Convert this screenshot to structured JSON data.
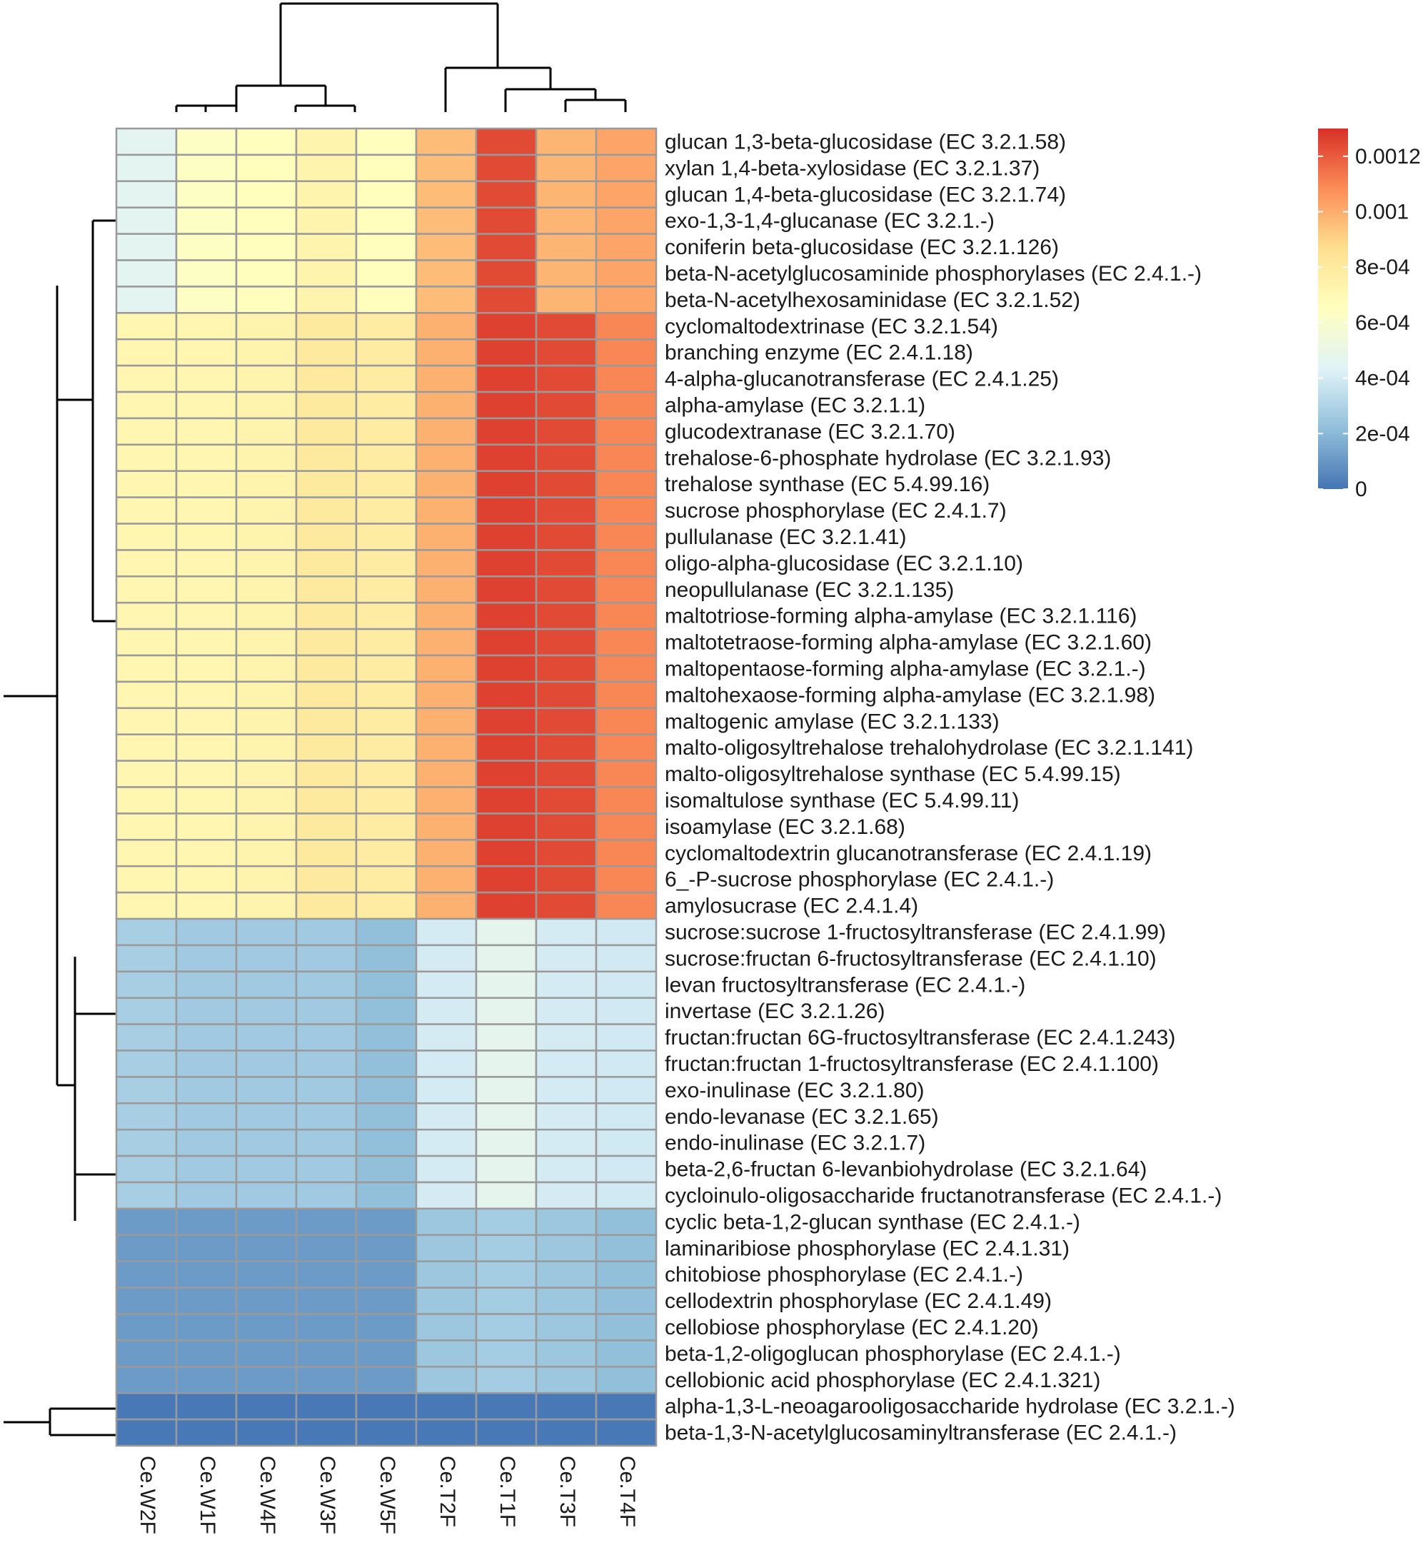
{
  "chart_data": {
    "type": "heatmap",
    "title": "",
    "columns": [
      "Ce.W2F",
      "Ce.W1F",
      "Ce.W4F",
      "Ce.W3F",
      "Ce.W5F",
      "Ce.T2F",
      "Ce.T1F",
      "Ce.T3F",
      "Ce.T4F"
    ],
    "rows": [
      "glucan 1,3-beta-glucosidase (EC 3.2.1.58)",
      "xylan 1,4-beta-xylosidase (EC 3.2.1.37)",
      "glucan 1,4-beta-glucosidase (EC 3.2.1.74)",
      "exo-1,3-1,4-glucanase (EC 3.2.1.-)",
      "coniferin beta-glucosidase (EC 3.2.1.126)",
      "beta-N-acetylglucosaminide phosphorylases (EC 2.4.1.-)",
      "beta-N-acetylhexosaminidase (EC 3.2.1.52)",
      "cyclomaltodextrinase (EC 3.2.1.54)",
      "branching enzyme (EC 2.4.1.18)",
      "4-alpha-glucanotransferase (EC 2.4.1.25)",
      "alpha-amylase (EC 3.2.1.1)",
      "glucodextranase (EC 3.2.1.70)",
      "trehalose-6-phosphate hydrolase (EC 3.2.1.93)",
      "trehalose synthase (EC 5.4.99.16)",
      "sucrose phosphorylase (EC 2.4.1.7)",
      "pullulanase (EC 3.2.1.41)",
      "oligo-alpha-glucosidase (EC 3.2.1.10)",
      "neopullulanase (EC 3.2.1.135)",
      "maltotriose-forming alpha-amylase (EC 3.2.1.116)",
      "maltotetraose-forming alpha-amylase (EC 3.2.1.60)",
      "maltopentaose-forming alpha-amylase (EC 3.2.1.-)",
      "maltohexaose-forming alpha-amylase (EC 3.2.1.98)",
      "maltogenic amylase (EC 3.2.1.133)",
      "malto-oligosyltrehalose trehalohydrolase (EC 3.2.1.141)",
      "malto-oligosyltrehalose synthase (EC 5.4.99.15)",
      "isomaltulose synthase (EC 5.4.99.11)",
      "isoamylase (EC 3.2.1.68)",
      "cyclomaltodextrin glucanotransferase (EC 2.4.1.19)",
      "6_-P-sucrose phosphorylase (EC 2.4.1.-)",
      "amylosucrase (EC 2.4.1.4)",
      "sucrose:sucrose 1-fructosyltransferase (EC 2.4.1.99)",
      "sucrose:fructan 6-fructosyltransferase (EC 2.4.1.10)",
      "levan fructosyltransferase (EC 2.4.1.-)",
      "invertase (EC 3.2.1.26)",
      "fructan:fructan 6G-fructosyltransferase (EC 2.4.1.243)",
      "fructan:fructan 1-fructosyltransferase (EC 2.4.1.100)",
      "exo-inulinase (EC 3.2.1.80)",
      "endo-levanase (EC 3.2.1.65)",
      "endo-inulinase (EC 3.2.1.7)",
      "beta-2,6-fructan 6-levanbiohydrolase (EC 3.2.1.64)",
      "cycloinulo-oligosaccharide fructanotransferase (EC 2.4.1.-)",
      "cyclic beta-1,2-glucan synthase (EC 2.4.1.-)",
      "laminaribiose phosphorylase (EC 2.4.1.31)",
      "chitobiose phosphorylase (EC 2.4.1.-)",
      "cellodextrin phosphorylase (EC 2.4.1.49)",
      "cellobiose phosphorylase (EC 2.4.1.20)",
      "beta-1,2-oligoglucan phosphorylase (EC 2.4.1.-)",
      "cellobionic acid phosphorylase (EC 2.4.1.321)",
      "alpha-1,3-L-neoagarooligosaccharide hydrolase (EC 3.2.1.-)",
      "beta-1,3-N-acetylglucosaminyltransferase (EC 2.4.1.-)"
    ],
    "group_values": [
      {
        "rows": [
          0,
          6
        ],
        "values": [
          0.00046,
          0.00063,
          0.00066,
          0.00073,
          0.00066,
          0.00096,
          0.00124,
          0.00098,
          0.00102
        ]
      },
      {
        "rows": [
          7,
          29
        ],
        "values": [
          0.00071,
          0.00071,
          0.00073,
          0.0008,
          0.00078,
          0.00099,
          0.00126,
          0.00124,
          0.0011
        ]
      },
      {
        "rows": [
          30,
          40
        ],
        "values": [
          0.00028,
          0.00026,
          0.00026,
          0.00026,
          0.00022,
          0.0004,
          0.00047,
          0.0004,
          0.00039
        ]
      },
      {
        "rows": [
          41,
          47
        ],
        "values": [
          0.00011,
          0.00011,
          0.00011,
          0.00011,
          0.00011,
          0.00025,
          0.00027,
          0.00025,
          0.00022
        ]
      },
      {
        "rows": [
          48,
          49
        ],
        "values": [
          1e-05,
          1e-05,
          1e-05,
          1e-05,
          1e-05,
          1e-05,
          1e-05,
          1e-05,
          1e-05
        ]
      }
    ],
    "color_scale": {
      "min": 0,
      "max": 0.0013,
      "stops": [
        "#4575b4",
        "#91bfdb",
        "#e0f3f8",
        "#ffffbf",
        "#fee090",
        "#fc8d59",
        "#d73027"
      ],
      "legend_ticks": [
        {
          "value": 0.0012,
          "label": "0.0012"
        },
        {
          "value": 0.001,
          "label": "0.001"
        },
        {
          "value": 0.0008,
          "label": "8e-04"
        },
        {
          "value": 0.0006,
          "label": "6e-04"
        },
        {
          "value": 0.0004,
          "label": "4e-04"
        },
        {
          "value": 0.0002,
          "label": "2e-04"
        },
        {
          "value": 0,
          "label": "0"
        }
      ]
    },
    "legend_position": "top-right",
    "column_dendrogram": "top",
    "row_dendrogram": "left"
  }
}
